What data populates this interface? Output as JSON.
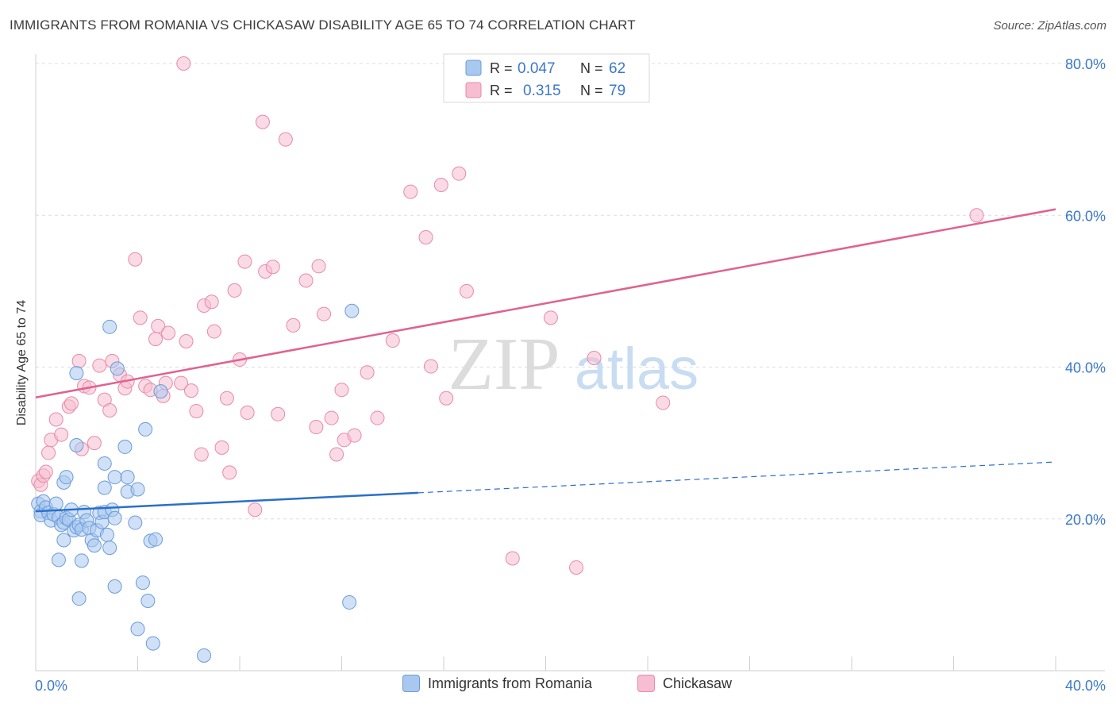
{
  "title": "IMMIGRANTS FROM ROMANIA VS CHICKASAW DISABILITY AGE 65 TO 74 CORRELATION CHART",
  "source": "Source: ZipAtlas.com",
  "watermark": {
    "zip": "ZIP",
    "atlas": "atlas"
  },
  "colors": {
    "blue_fill": "#a9c8f0",
    "blue_stroke": "#6a9bd8",
    "blue_line": "#2a6fcb",
    "pink_fill": "#f6bed0",
    "pink_stroke": "#e88aa7",
    "pink_line": "#e0628f",
    "axis_label": "#3b78c9",
    "grid": "#dddddd"
  },
  "legend_top": {
    "r_label": "R =",
    "n_label": "N =",
    "series": [
      {
        "r": "0.047",
        "n": "62"
      },
      {
        "r": "0.315",
        "n": "79"
      }
    ]
  },
  "chart_data": {
    "type": "scatter",
    "title": "IMMIGRANTS FROM ROMANIA VS CHICKASAW DISABILITY AGE 65 TO 74 CORRELATION CHART",
    "xlabel": "",
    "ylabel": "Disability Age 65 to 74",
    "xlim": [
      0,
      40
    ],
    "ylim": [
      0,
      80
    ],
    "x_tick_labels": [
      "0.0%",
      "40.0%"
    ],
    "y_ticks": [
      20,
      40,
      60,
      80
    ],
    "y_tick_labels": [
      "20.0%",
      "40.0%",
      "60.0%",
      "80.0%"
    ],
    "grid": true,
    "series": [
      {
        "name": "Immigrants from Romania",
        "color": "blue",
        "trend": {
          "x_start": 0,
          "y_start": 21.0,
          "x_solid_end": 15.0,
          "x_end": 40,
          "y_end": 27.5
        },
        "points": [
          [
            0.1,
            22
          ],
          [
            0.2,
            21
          ],
          [
            0.2,
            20.5
          ],
          [
            0.3,
            22.3
          ],
          [
            0.4,
            21.5
          ],
          [
            0.5,
            20.8
          ],
          [
            0.6,
            19.8
          ],
          [
            0.7,
            20.6
          ],
          [
            0.8,
            22
          ],
          [
            0.9,
            20.2
          ],
          [
            1.0,
            19.2
          ],
          [
            1.1,
            19.5
          ],
          [
            1.2,
            20.1
          ],
          [
            1.3,
            19.9
          ],
          [
            1.4,
            21.2
          ],
          [
            1.5,
            18.5
          ],
          [
            1.6,
            18.9
          ],
          [
            1.7,
            19.2
          ],
          [
            1.8,
            18.6
          ],
          [
            1.9,
            20.9
          ],
          [
            2.0,
            19.8
          ],
          [
            2.1,
            18.8
          ],
          [
            2.2,
            17.2
          ],
          [
            2.3,
            16.5
          ],
          [
            2.4,
            18.5
          ],
          [
            2.5,
            20.8
          ],
          [
            2.6,
            19.6
          ],
          [
            2.7,
            20.9
          ],
          [
            2.8,
            17.9
          ],
          [
            2.9,
            16.2
          ],
          [
            3.0,
            21.2
          ],
          [
            3.1,
            20.1
          ],
          [
            1.1,
            17.2
          ],
          [
            0.9,
            14.6
          ],
          [
            1.8,
            14.5
          ],
          [
            1.1,
            24.8
          ],
          [
            1.2,
            25.5
          ],
          [
            1.6,
            29.7
          ],
          [
            2.7,
            24.1
          ],
          [
            2.7,
            27.3
          ],
          [
            3.1,
            11.1
          ],
          [
            3.1,
            25.5
          ],
          [
            3.5,
            29.5
          ],
          [
            3.6,
            23.6
          ],
          [
            3.6,
            25.5
          ],
          [
            3.9,
            19.5
          ],
          [
            4.0,
            23.9
          ],
          [
            4.2,
            11.6
          ],
          [
            4.3,
            31.8
          ],
          [
            4.4,
            9.2
          ],
          [
            4.5,
            17.1
          ],
          [
            4.7,
            17.3
          ],
          [
            4.9,
            36.8
          ],
          [
            4.6,
            3.6
          ],
          [
            4.0,
            5.5
          ],
          [
            1.7,
            9.5
          ],
          [
            1.6,
            39.2
          ],
          [
            2.9,
            45.3
          ],
          [
            3.2,
            39.8
          ],
          [
            6.6,
            2.0
          ],
          [
            12.4,
            47.4
          ],
          [
            12.3,
            9.0
          ]
        ]
      },
      {
        "name": "Chickasaw",
        "color": "pink",
        "trend": {
          "x_start": 0,
          "y_start": 36.0,
          "x_solid_end": 40,
          "x_end": 40,
          "y_end": 60.8
        },
        "points": [
          [
            0.1,
            25
          ],
          [
            0.2,
            24.5
          ],
          [
            0.3,
            25.7
          ],
          [
            0.4,
            26.2
          ],
          [
            0.5,
            28.7
          ],
          [
            0.6,
            30.4
          ],
          [
            0.8,
            33.1
          ],
          [
            1.0,
            31.1
          ],
          [
            1.3,
            34.8
          ],
          [
            1.4,
            35.2
          ],
          [
            1.7,
            40.8
          ],
          [
            1.8,
            29.2
          ],
          [
            1.9,
            37.5
          ],
          [
            2.1,
            37.3
          ],
          [
            2.3,
            30
          ],
          [
            2.5,
            40.2
          ],
          [
            2.7,
            35.7
          ],
          [
            2.9,
            34.3
          ],
          [
            3.0,
            40.8
          ],
          [
            3.3,
            39
          ],
          [
            3.5,
            37.2
          ],
          [
            3.6,
            38.1
          ],
          [
            3.9,
            54.2
          ],
          [
            4.1,
            46.5
          ],
          [
            4.3,
            37.5
          ],
          [
            4.5,
            37
          ],
          [
            4.7,
            43.7
          ],
          [
            4.8,
            45.4
          ],
          [
            5.0,
            36.2
          ],
          [
            5.1,
            37.9
          ],
          [
            5.2,
            44.5
          ],
          [
            5.7,
            37.9
          ],
          [
            5.9,
            43.4
          ],
          [
            6.1,
            36.9
          ],
          [
            6.3,
            34.2
          ],
          [
            6.5,
            28.5
          ],
          [
            6.6,
            48.1
          ],
          [
            6.9,
            48.6
          ],
          [
            7.0,
            44.7
          ],
          [
            7.3,
            29.4
          ],
          [
            7.5,
            35.9
          ],
          [
            7.6,
            26.1
          ],
          [
            7.8,
            50.1
          ],
          [
            8.0,
            41
          ],
          [
            8.2,
            53.9
          ],
          [
            8.3,
            34
          ],
          [
            8.6,
            21.2
          ],
          [
            8.9,
            72.3
          ],
          [
            9.0,
            52.6
          ],
          [
            9.3,
            53.2
          ],
          [
            9.5,
            33.8
          ],
          [
            9.8,
            70
          ],
          [
            10.1,
            45.5
          ],
          [
            10.6,
            51.4
          ],
          [
            11.0,
            32.1
          ],
          [
            11.1,
            53.3
          ],
          [
            11.3,
            47
          ],
          [
            11.6,
            33.3
          ],
          [
            11.8,
            28.5
          ],
          [
            12.0,
            37
          ],
          [
            12.1,
            30.4
          ],
          [
            12.5,
            31
          ],
          [
            13.0,
            39.3
          ],
          [
            13.4,
            33.3
          ],
          [
            14.0,
            43.5
          ],
          [
            14.7,
            63.1
          ],
          [
            15.3,
            57.1
          ],
          [
            15.5,
            40.1
          ],
          [
            15.9,
            64
          ],
          [
            16.1,
            35.9
          ],
          [
            16.6,
            65.5
          ],
          [
            16.9,
            50
          ],
          [
            18.7,
            14.8
          ],
          [
            20.2,
            46.5
          ],
          [
            21.2,
            13.6
          ],
          [
            21.9,
            41.2
          ],
          [
            24.6,
            35.3
          ],
          [
            36.9,
            60
          ],
          [
            5.8,
            80
          ]
        ]
      }
    ]
  },
  "legend_bottom": [
    {
      "label": "Immigrants from Romania"
    },
    {
      "label": "Chickasaw"
    }
  ]
}
